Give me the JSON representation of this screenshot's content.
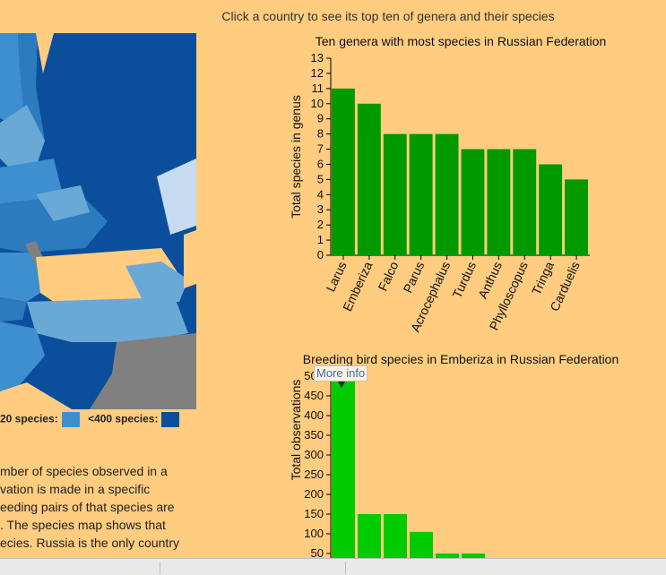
{
  "header": {
    "hint": "Click a country to see its top ten of genera and their species"
  },
  "legend": {
    "label_a": "20 species:",
    "color_a": "#3d8fcf",
    "label_b": "<400 species:",
    "color_b": "#0b4f9c"
  },
  "prose": {
    "lines": [
      "mber of species observed in a",
      "vation is made in a specific",
      "eeding pairs of that species are",
      ". The species map shows that",
      "ecies. Russia is the only country"
    ]
  },
  "tooltip": {
    "text": "More info"
  },
  "colors": {
    "bar_top": "#009900",
    "bar_bottom": "#00cc00",
    "background": "#ffcc80",
    "map_water": "#ffcc80"
  },
  "chart_data": [
    {
      "type": "bar",
      "title": "Ten genera with most species in Russian Federation",
      "ylabel": "Total species in genus",
      "xlabel": "",
      "ylim": [
        0,
        13
      ],
      "categories": [
        "Larus",
        "Emberiza",
        "Falco",
        "Parus",
        "Acrocephalus",
        "Turdus",
        "Anthus",
        "Phylloscopus",
        "Tringa",
        "Carduelis"
      ],
      "values": [
        11,
        10,
        8,
        8,
        8,
        7,
        7,
        7,
        6,
        5
      ],
      "yticks": [
        0,
        1,
        2,
        3,
        4,
        5,
        6,
        7,
        8,
        9,
        10,
        11,
        12,
        13
      ]
    },
    {
      "type": "bar",
      "title": "Breeding bird species in Emberiza in Russian Federation",
      "ylabel": "Total observations",
      "xlabel": "",
      "ylim": [
        0,
        500
      ],
      "values": [
        500,
        150,
        150,
        105,
        50,
        50
      ],
      "yticks": [
        50,
        100,
        150,
        200,
        250,
        300,
        350,
        400,
        450,
        500
      ]
    }
  ]
}
